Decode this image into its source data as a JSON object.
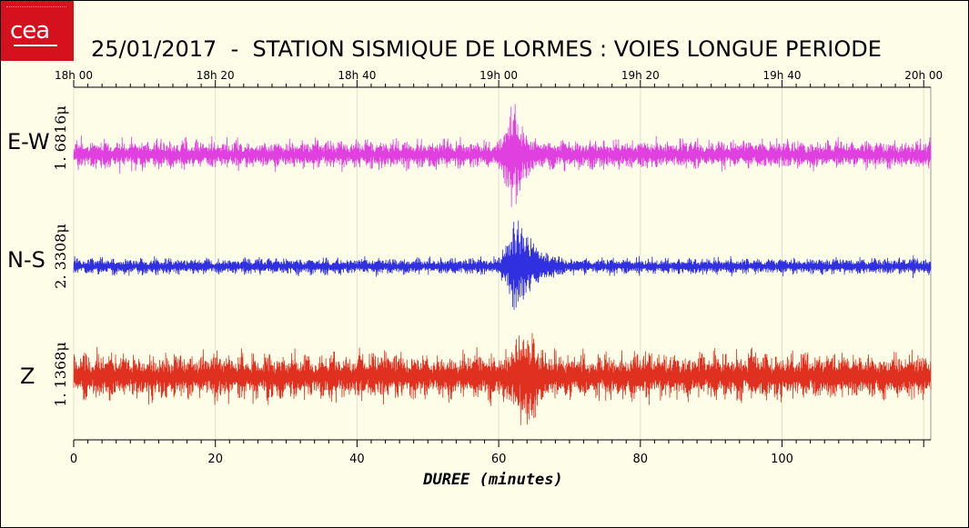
{
  "header": {
    "title": "25/01/2017  -  STATION SISMIQUE DE LORMES : VOIES LONGUE PERIODE",
    "logo_text": "cea"
  },
  "chart_data": {
    "type": "line",
    "title": "25/01/2017  -  STATION SISMIQUE DE LORMES : VOIES LONGUE PERIODE",
    "xlabel": "DUREE (minutes)",
    "xlim": [
      0,
      121
    ],
    "x_ticks": [
      0,
      20,
      40,
      60,
      80,
      100
    ],
    "top_time_ticks": [
      "18h 00",
      "18h 20",
      "18h 40",
      "19h 00",
      "19h 20",
      "19h 40",
      "20h 00"
    ],
    "grid": false,
    "series": [
      {
        "name": "E-W",
        "amplitude_label": "1. 6816μ",
        "color": "#e040e0",
        "noise": 0.22,
        "events": [
          {
            "start": 59.5,
            "peak": 62,
            "end": 70,
            "amp": 1.0
          },
          {
            "start": 87.5,
            "peak": 88,
            "end": 89,
            "amp": 0.3
          },
          {
            "start": 98,
            "peak": 98.5,
            "end": 99.5,
            "amp": 0.3
          }
        ]
      },
      {
        "name": "N-S",
        "amplitude_label": "2. 3308μ",
        "color": "#3030e0",
        "noise": 0.13,
        "events": [
          {
            "start": 59.5,
            "peak": 62.5,
            "end": 73,
            "amp": 1.0
          },
          {
            "start": 118,
            "peak": 118.5,
            "end": 119.5,
            "amp": 0.25
          }
        ]
      },
      {
        "name": "Z",
        "amplitude_label": "1. 1368μ",
        "color": "#e03020",
        "noise": 0.35,
        "events": [
          {
            "start": 59.5,
            "peak": 64,
            "end": 73,
            "amp": 1.0
          },
          {
            "start": 118,
            "peak": 118.5,
            "end": 119.5,
            "amp": 0.4
          }
        ]
      }
    ]
  }
}
